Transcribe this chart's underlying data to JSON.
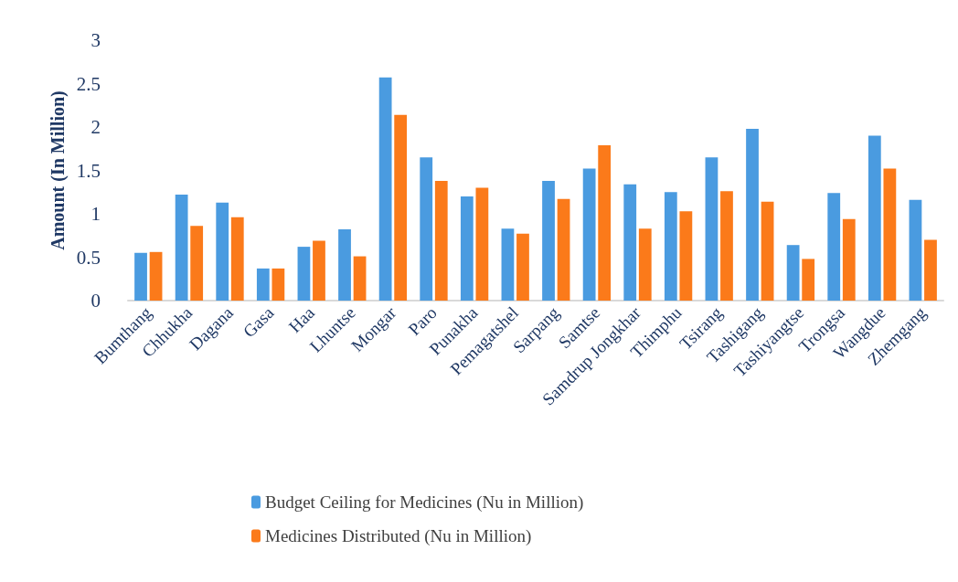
{
  "chart_data": {
    "type": "bar",
    "ylabel": "Amount (In Million)",
    "categories": [
      "Bumthang",
      "Chhukha",
      "Dagana",
      "Gasa",
      "Haa",
      "Lhuntse",
      "Mongar",
      "Paro",
      "Punakha",
      "Pemagatshel",
      "Sarpang",
      "Samtse",
      "Samdrup Jongkhar",
      "Thimphu",
      "Tsirang",
      "Tashigang",
      "Tashiyangtse",
      "Trongsa",
      "Wangdue",
      "Zhemgang"
    ],
    "series": [
      {
        "name": "Budget Ceiling for Medicines (Nu in Million)",
        "color": "#4a9be0",
        "values": [
          0.55,
          1.22,
          1.13,
          0.37,
          0.62,
          0.82,
          2.57,
          1.65,
          1.2,
          0.83,
          1.38,
          1.52,
          1.34,
          1.25,
          1.65,
          1.98,
          0.64,
          1.24,
          1.9,
          1.16
        ]
      },
      {
        "name": "Medicines Distributed (Nu in Million)",
        "color": "#fb7a1a",
        "values": [
          0.56,
          0.86,
          0.96,
          0.37,
          0.69,
          0.51,
          2.14,
          1.38,
          1.3,
          0.77,
          1.17,
          1.79,
          0.83,
          1.03,
          1.26,
          1.14,
          0.48,
          0.94,
          1.52,
          0.7
        ]
      }
    ],
    "ylim": [
      0,
      3
    ],
    "yticks": [
      0,
      0.5,
      1,
      1.5,
      2,
      2.5,
      3
    ],
    "grid": false,
    "legend": "bottom"
  }
}
